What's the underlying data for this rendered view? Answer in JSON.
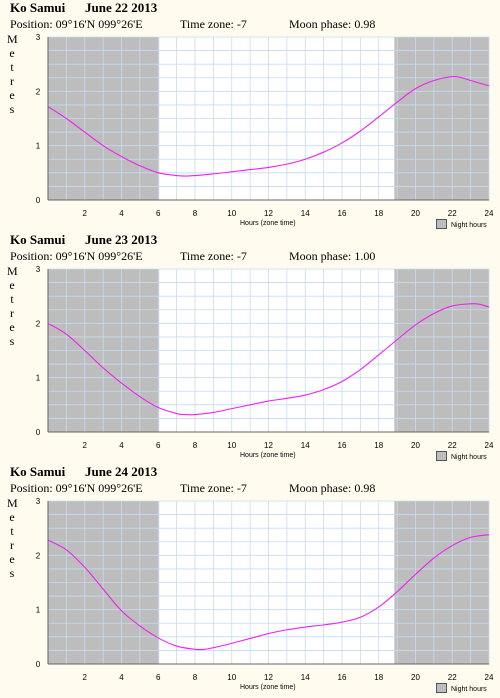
{
  "colors": {
    "background": "#fffbef",
    "night": "#bdbdbd",
    "grid": "#c6dbf2",
    "curve": "#ee22ee"
  },
  "y_axis_title": "Metres",
  "x_axis_label": "Hours (zone time)",
  "legend_label": "Night hours",
  "chart_data": [
    {
      "type": "line",
      "location": "Ko Samui",
      "date": "June 22 2013",
      "position": "Position: 09°16'N 099°26'E",
      "timezone": "Time zone: -7",
      "moon": "Moon phase: 0.98",
      "xlim": [
        0,
        24
      ],
      "ylim": [
        0,
        3
      ],
      "x_ticks": [
        "2",
        "4",
        "6",
        "8",
        "10",
        "12",
        "14",
        "16",
        "18",
        "20",
        "22",
        "24"
      ],
      "y_ticks": [
        "0",
        "1",
        "2",
        "3"
      ],
      "night": [
        [
          0,
          6.05
        ],
        [
          18.85,
          24
        ]
      ],
      "x": [
        0,
        1,
        2,
        3,
        4,
        5,
        6,
        7,
        7.5,
        8,
        9,
        10,
        11,
        12,
        13,
        14,
        15,
        16,
        17,
        18,
        19,
        20,
        21,
        22,
        22.5,
        23,
        24
      ],
      "y": [
        1.72,
        1.5,
        1.25,
        1.0,
        0.8,
        0.63,
        0.5,
        0.45,
        0.44,
        0.45,
        0.48,
        0.52,
        0.56,
        0.6,
        0.66,
        0.75,
        0.88,
        1.05,
        1.27,
        1.53,
        1.8,
        2.05,
        2.2,
        2.27,
        2.25,
        2.2,
        2.1
      ]
    },
    {
      "type": "line",
      "location": "Ko Samui",
      "date": "June 23 2013",
      "position": "Position: 09°16'N 099°26'E",
      "timezone": "Time zone: -7",
      "moon": "Moon phase: 1.00",
      "xlim": [
        0,
        24
      ],
      "ylim": [
        0,
        3
      ],
      "x_ticks": [
        "2",
        "4",
        "6",
        "8",
        "10",
        "12",
        "14",
        "16",
        "18",
        "20",
        "22",
        "24"
      ],
      "y_ticks": [
        "0",
        "1",
        "2",
        "3"
      ],
      "night": [
        [
          0,
          6.05
        ],
        [
          18.85,
          24
        ]
      ],
      "x": [
        0,
        1,
        2,
        3,
        4,
        5,
        6,
        7,
        7.5,
        8,
        9,
        10,
        11,
        12,
        13,
        14,
        15,
        16,
        17,
        18,
        19,
        20,
        21,
        22,
        23,
        23.5,
        24
      ],
      "y": [
        2.0,
        1.8,
        1.5,
        1.18,
        0.9,
        0.65,
        0.45,
        0.34,
        0.32,
        0.32,
        0.36,
        0.43,
        0.5,
        0.57,
        0.62,
        0.68,
        0.78,
        0.93,
        1.15,
        1.42,
        1.7,
        1.97,
        2.18,
        2.32,
        2.36,
        2.35,
        2.3
      ]
    },
    {
      "type": "line",
      "location": "Ko Samui",
      "date": "June 24 2013",
      "position": "Position: 09°16'N 099°26'E",
      "timezone": "Time zone: -7",
      "moon": "Moon phase: 0.98",
      "xlim": [
        0,
        24
      ],
      "ylim": [
        0,
        3
      ],
      "x_ticks": [
        "2",
        "4",
        "6",
        "8",
        "10",
        "12",
        "14",
        "16",
        "18",
        "20",
        "22",
        "24"
      ],
      "y_ticks": [
        "0",
        "1",
        "2",
        "3"
      ],
      "night": [
        [
          0,
          6.05
        ],
        [
          18.85,
          24
        ]
      ],
      "x": [
        0,
        1,
        2,
        3,
        4,
        5,
        6,
        7,
        8,
        8.5,
        9,
        10,
        11,
        12,
        13,
        14,
        15,
        16,
        17,
        18,
        19,
        20,
        21,
        22,
        23,
        24
      ],
      "y": [
        2.28,
        2.1,
        1.78,
        1.38,
        0.98,
        0.7,
        0.48,
        0.33,
        0.27,
        0.27,
        0.3,
        0.38,
        0.47,
        0.56,
        0.63,
        0.68,
        0.72,
        0.77,
        0.86,
        1.05,
        1.33,
        1.65,
        1.95,
        2.18,
        2.33,
        2.38
      ]
    }
  ]
}
